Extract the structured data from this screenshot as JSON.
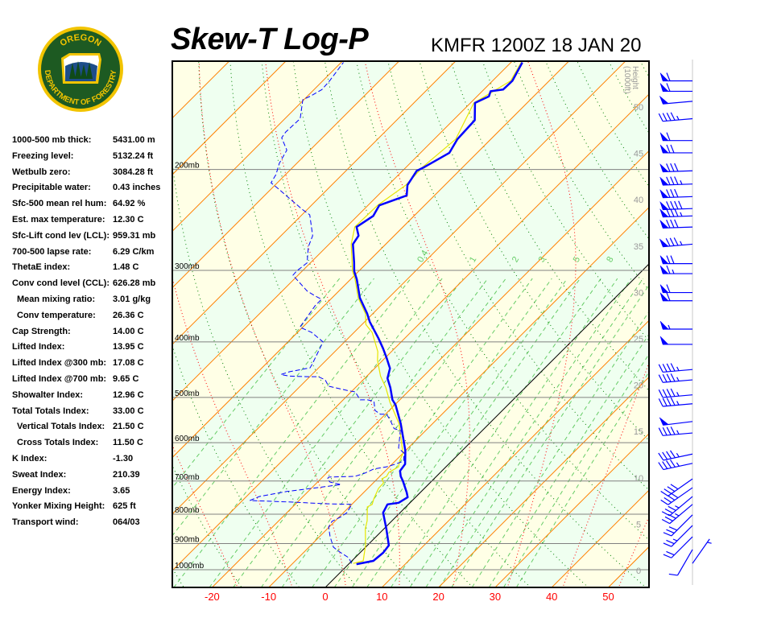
{
  "logo": {
    "text_top": "OREGON",
    "text_bottom": "DEPARTMENT OF FORESTRY"
  },
  "header": {
    "title": "Skew-T Log-P",
    "subtitle": "KMFR 1200Z 18 JAN 20"
  },
  "stats": [
    {
      "label": "1000-500 mb thick:",
      "value": "5431.00 m"
    },
    {
      "label": "Freezing level:",
      "value": "5132.24 ft"
    },
    {
      "label": "Wetbulb zero:",
      "value": "3084.28 ft"
    },
    {
      "label": "Precipitable water:",
      "value": "0.43 inches"
    },
    {
      "label": "Sfc-500 mean rel hum:",
      "value": "64.92 %"
    },
    {
      "label": "Est. max temperature:",
      "value": "12.30 C"
    },
    {
      "label": "Sfc-Lift cond lev (LCL):",
      "value": "959.31 mb"
    },
    {
      "label": "700-500 lapse rate:",
      "value": "6.29 C/km"
    },
    {
      "label": "ThetaE index:",
      "value": "1.48 C"
    },
    {
      "label": "Conv cond level (CCL):",
      "value": "626.28 mb"
    },
    {
      "label": "Mean mixing ratio:",
      "value": "3.01 g/kg",
      "sub": true
    },
    {
      "label": "Conv temperature:",
      "value": "26.36 C",
      "sub": true
    },
    {
      "label": "Cap Strength:",
      "value": "14.00 C"
    },
    {
      "label": "Lifted Index:",
      "value": "13.95 C"
    },
    {
      "label": "Lifted Index @300 mb:",
      "value": "17.08 C"
    },
    {
      "label": "Lifted Index @700 mb:",
      "value": "9.65 C"
    },
    {
      "label": "Showalter Index:",
      "value": "12.96 C"
    },
    {
      "label": "Total Totals Index:",
      "value": "33.00 C"
    },
    {
      "label": "Vertical Totals Index:",
      "value": "21.50 C",
      "sub": true
    },
    {
      "label": "Cross Totals Index:",
      "value": "11.50 C",
      "sub": true
    },
    {
      "label": "K Index:",
      "value": "-1.30"
    },
    {
      "label": "Sweat Index:",
      "value": "210.39"
    },
    {
      "label": "Energy Index:",
      "value": "3.65"
    },
    {
      "label": "Yonker Mixing Height:",
      "value": "625 ft"
    },
    {
      "label": "Transport wind:",
      "value": "064/03"
    }
  ],
  "chart_data": {
    "type": "skew-t log-p",
    "title": "Skew-T Log-P",
    "subtitle": "KMFR 1200Z 18 JAN 20",
    "x_ticks": [
      -20,
      -10,
      0,
      10,
      20,
      30,
      40,
      50
    ],
    "x_tick_labels": [
      "-20",
      "-10",
      "0",
      "10",
      "20",
      "30",
      "40",
      "50"
    ],
    "pressure_levels": [
      200,
      300,
      400,
      500,
      600,
      700,
      800,
      900,
      1000
    ],
    "pressure_labels": [
      "200mb",
      "300mb",
      "400mb",
      "500mb",
      "600mb",
      "700mb",
      "800mb",
      "900mb",
      "1000mb"
    ],
    "pressure_range_mb": [
      1074,
      129
    ],
    "height_axis": {
      "label_line1": "Height",
      "label_line2": "(1000ft)",
      "ticks": [
        0,
        5,
        10,
        15,
        20,
        25,
        30,
        35,
        40,
        45,
        50
      ],
      "tick_labels": [
        "0",
        "5",
        "10",
        "15",
        "20",
        "25",
        "30",
        "35",
        "40",
        "45",
        "50"
      ]
    },
    "isotherm_step_c": 10,
    "dry_adiabats_theta_c": [
      -40,
      -30,
      -20,
      -10,
      0,
      10,
      20,
      30,
      40,
      50,
      60,
      70,
      80,
      90,
      100,
      110,
      120,
      130,
      140,
      150,
      160,
      170,
      180,
      190,
      200
    ],
    "moist_adiabats_t1000_c": [
      -20,
      -10,
      0,
      10,
      20,
      30,
      40,
      50
    ],
    "mixing_ratio_lines_gkg": [
      0.1,
      0.2,
      0.4,
      0.7,
      1,
      1.5,
      2,
      3,
      4,
      5,
      6,
      8,
      10,
      12,
      14,
      16,
      20,
      24,
      28,
      32
    ],
    "mixing_ratio_labels": [
      {
        "value": 0.4,
        "text": "0.4"
      },
      {
        "value": 1,
        "text": "1"
      },
      {
        "value": 2,
        "text": "2"
      },
      {
        "value": 3,
        "text": "3"
      },
      {
        "value": 5,
        "text": "5"
      },
      {
        "value": 8,
        "text": "8"
      }
    ],
    "colors": {
      "temperature": "#0000ff",
      "dewpoint": "#0000ff",
      "wetbulb": "#e6e600",
      "isotherm": "#ff8000",
      "zero_isotherm": "#000000",
      "dry_adiabat": "#008000",
      "moist_adiabat": "#ff0000",
      "mixing_ratio": "#66cc66",
      "band_a": "#ffffe6",
      "band_b": "#effff0",
      "x_tick": "#ff0000",
      "height_tick": "#999999",
      "wind": "#0000ff"
    },
    "series": [
      {
        "name": "temperature",
        "points_p_t": [
          [
            978,
            1.4
          ],
          [
            965,
            3.8
          ],
          [
            934,
            4.1
          ],
          [
            907,
            3.8
          ],
          [
            848,
            0.4
          ],
          [
            795,
            -3.0
          ],
          [
            769,
            -3.7
          ],
          [
            764,
            -2.0
          ],
          [
            747,
            -1.4
          ],
          [
            733,
            -2.4
          ],
          [
            700,
            -5.1
          ],
          [
            687,
            -6.3
          ],
          [
            672,
            -7.4
          ],
          [
            654,
            -7.7
          ],
          [
            620,
            -10.0
          ],
          [
            594,
            -12.2
          ],
          [
            556,
            -15.6
          ],
          [
            515,
            -19.9
          ],
          [
            505,
            -21.3
          ],
          [
            481,
            -23.8
          ],
          [
            463,
            -26.0
          ],
          [
            445,
            -27.3
          ],
          [
            427,
            -29.7
          ],
          [
            411,
            -32.0
          ],
          [
            394,
            -34.7
          ],
          [
            369,
            -39.1
          ],
          [
            357,
            -41.0
          ],
          [
            335,
            -45.1
          ],
          [
            311,
            -48.9
          ],
          [
            301,
            -50.8
          ],
          [
            291,
            -52.3
          ],
          [
            270,
            -55.8
          ],
          [
            261,
            -56.3
          ],
          [
            252,
            -58.2
          ],
          [
            241,
            -57.2
          ],
          [
            231,
            -58.0
          ],
          [
            222,
            -54.9
          ],
          [
            213,
            -56.6
          ],
          [
            201,
            -57.5
          ],
          [
            198,
            -56.8
          ],
          [
            187,
            -54.9
          ],
          [
            177,
            -55.9
          ],
          [
            164,
            -56.2
          ],
          [
            153,
            -59.2
          ],
          [
            149,
            -57.9
          ],
          [
            146,
            -58.5
          ],
          [
            145,
            -56.6
          ],
          [
            140,
            -56.5
          ],
          [
            130,
            -58.0
          ]
        ]
      },
      {
        "name": "dewpoint",
        "points_p_t": [
          [
            975,
            0.4
          ],
          [
            953,
            -1.1
          ],
          [
            928,
            -4.1
          ],
          [
            913,
            -5.7
          ],
          [
            876,
            -8.1
          ],
          [
            842,
            -10.1
          ],
          [
            823,
            -10.5
          ],
          [
            808,
            -9.7
          ],
          [
            795,
            -9.4
          ],
          [
            769,
            -10.0
          ],
          [
            767,
            -14.9
          ],
          [
            762,
            -20.8
          ],
          [
            757,
            -28.7
          ],
          [
            745,
            -27.7
          ],
          [
            730,
            -23.8
          ],
          [
            721,
            -19.9
          ],
          [
            716,
            -17.9
          ],
          [
            710,
            -15.4
          ],
          [
            703,
            -17.8
          ],
          [
            694,
            -18.8
          ],
          [
            689,
            -18.9
          ],
          [
            687,
            -14.4
          ],
          [
            678,
            -13.2
          ],
          [
            667,
            -12.4
          ],
          [
            661,
            -10.5
          ],
          [
            654,
            -9.4
          ],
          [
            646,
            -8.5
          ],
          [
            626,
            -9.8
          ],
          [
            613,
            -11.7
          ],
          [
            571,
            -14.5
          ],
          [
            567,
            -15.9
          ],
          [
            548,
            -18.1
          ],
          [
            535,
            -19.8
          ],
          [
            535,
            -20.9
          ],
          [
            527,
            -22.5
          ],
          [
            508,
            -24.3
          ],
          [
            505,
            -25.7
          ],
          [
            505,
            -27.0
          ],
          [
            489,
            -29.3
          ],
          [
            487,
            -30.6
          ],
          [
            478,
            -35.0
          ],
          [
            466,
            -36.7
          ],
          [
            460,
            -38.5
          ],
          [
            460,
            -40.3
          ],
          [
            459,
            -43.7
          ],
          [
            456,
            -45.5
          ],
          [
            451,
            -44.4
          ],
          [
            444,
            -41.5
          ],
          [
            437,
            -41.8
          ],
          [
            400,
            -43.8
          ],
          [
            385,
            -47.5
          ],
          [
            377,
            -50.5
          ],
          [
            365,
            -50.9
          ],
          [
            346,
            -51.6
          ],
          [
            337,
            -51.6
          ],
          [
            332,
            -53.5
          ],
          [
            326,
            -55.6
          ],
          [
            306,
            -60.9
          ],
          [
            301,
            -61.0
          ],
          [
            291,
            -60.6
          ],
          [
            273,
            -63.2
          ],
          [
            261,
            -64.4
          ],
          [
            240,
            -68.6
          ],
          [
            235,
            -70.8
          ],
          [
            223,
            -75.8
          ],
          [
            216,
            -78.8
          ],
          [
            211,
            -81.1
          ],
          [
            204,
            -81.7
          ],
          [
            195,
            -83.1
          ],
          [
            185,
            -84.1
          ],
          [
            176,
            -87.2
          ],
          [
            172,
            -87.5
          ],
          [
            163,
            -87.3
          ],
          [
            151,
            -90.2
          ],
          [
            149,
            -89.5
          ],
          [
            145,
            -88.6
          ],
          [
            140,
            -88.8
          ],
          [
            130,
            -89.6
          ]
        ]
      },
      {
        "name": "wetbulb",
        "points_p_t": [
          [
            975,
            0.7
          ],
          [
            965,
            2.0
          ],
          [
            905,
            -0.4
          ],
          [
            848,
            -3.3
          ],
          [
            821,
            -4.4
          ],
          [
            777,
            -6.8
          ],
          [
            769,
            -6.4
          ],
          [
            752,
            -7.1
          ],
          [
            721,
            -8.1
          ],
          [
            705,
            -8.2
          ],
          [
            694,
            -9.2
          ],
          [
            687,
            -8.8
          ],
          [
            676,
            -9.1
          ],
          [
            661,
            -8.4
          ],
          [
            646,
            -9.2
          ],
          [
            626,
            -10.0
          ],
          [
            556,
            -15.9
          ],
          [
            510,
            -21.3
          ],
          [
            481,
            -24.6
          ],
          [
            459,
            -27.6
          ],
          [
            431,
            -30.9
          ],
          [
            416,
            -32.4
          ],
          [
            385,
            -36.8
          ],
          [
            373,
            -39.3
          ],
          [
            357,
            -41.3
          ],
          [
            335,
            -45.4
          ],
          [
            311,
            -49.2
          ],
          [
            301,
            -51.1
          ],
          [
            270,
            -56.1
          ],
          [
            252,
            -58.5
          ],
          [
            231,
            -58.3
          ],
          [
            213,
            -56.9
          ],
          [
            198,
            -57.1
          ],
          [
            177,
            -56.2
          ],
          [
            153,
            -59.4
          ],
          [
            140,
            -56.8
          ],
          [
            130,
            -58.2
          ]
        ]
      }
    ],
    "winds": [
      {
        "p": 140,
        "dir": 270,
        "kt": 60
      },
      {
        "p": 146,
        "dir": 270,
        "kt": 60
      },
      {
        "p": 152,
        "dir": 265,
        "kt": 50
      },
      {
        "p": 163,
        "dir": 265,
        "kt": 45
      },
      {
        "p": 178,
        "dir": 270,
        "kt": 60
      },
      {
        "p": 187,
        "dir": 270,
        "kt": 70
      },
      {
        "p": 201,
        "dir": 268,
        "kt": 80
      },
      {
        "p": 212,
        "dir": 268,
        "kt": 85
      },
      {
        "p": 223,
        "dir": 268,
        "kt": 80
      },
      {
        "p": 234,
        "dir": 268,
        "kt": 90
      },
      {
        "p": 241,
        "dir": 268,
        "kt": 85
      },
      {
        "p": 252,
        "dir": 268,
        "kt": 80
      },
      {
        "p": 270,
        "dir": 265,
        "kt": 85
      },
      {
        "p": 292,
        "dir": 270,
        "kt": 70
      },
      {
        "p": 304,
        "dir": 270,
        "kt": 65
      },
      {
        "p": 328,
        "dir": 270,
        "kt": 60
      },
      {
        "p": 339,
        "dir": 270,
        "kt": 60
      },
      {
        "p": 380,
        "dir": 270,
        "kt": 55
      },
      {
        "p": 404,
        "dir": 270,
        "kt": 50
      },
      {
        "p": 447,
        "dir": 265,
        "kt": 45
      },
      {
        "p": 466,
        "dir": 265,
        "kt": 45
      },
      {
        "p": 495,
        "dir": 265,
        "kt": 45
      },
      {
        "p": 513,
        "dir": 265,
        "kt": 45
      },
      {
        "p": 551,
        "dir": 263,
        "kt": 50
      },
      {
        "p": 577,
        "dir": 265,
        "kt": 45
      },
      {
        "p": 628,
        "dir": 258,
        "kt": 45
      },
      {
        "p": 652,
        "dir": 258,
        "kt": 45
      },
      {
        "p": 694,
        "dir": 235,
        "kt": 40
      },
      {
        "p": 719,
        "dir": 235,
        "kt": 40
      },
      {
        "p": 745,
        "dir": 230,
        "kt": 35
      },
      {
        "p": 769,
        "dir": 230,
        "kt": 35
      },
      {
        "p": 802,
        "dir": 225,
        "kt": 30
      },
      {
        "p": 837,
        "dir": 225,
        "kt": 25
      },
      {
        "p": 876,
        "dir": 225,
        "kt": 20
      },
      {
        "p": 922,
        "dir": 210,
        "kt": 10
      },
      {
        "p": 975,
        "dir": 35,
        "kt": 5
      }
    ]
  }
}
